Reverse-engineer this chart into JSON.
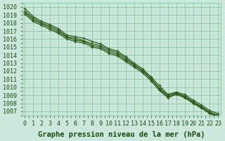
{
  "title": "Graphe pression niveau de la mer (hPa)",
  "xlabel_hours": [
    0,
    1,
    2,
    3,
    4,
    5,
    6,
    7,
    8,
    9,
    10,
    11,
    12,
    13,
    14,
    15,
    16,
    17,
    18,
    19,
    20,
    21,
    22,
    23
  ],
  "series": [
    [
      1019.8,
      1018.8,
      1018.2,
      1017.8,
      1017.3,
      1016.5,
      1016.3,
      1016.1,
      1015.7,
      1015.4,
      1014.8,
      1014.5,
      1013.8,
      1013.0,
      1012.3,
      1011.3,
      1010.2,
      1009.1,
      1009.4,
      1009.1,
      1008.4,
      1007.8,
      1007.1,
      1006.7
    ],
    [
      1019.5,
      1018.6,
      1018.0,
      1017.6,
      1017.1,
      1016.3,
      1016.1,
      1015.8,
      1015.4,
      1015.2,
      1014.6,
      1014.3,
      1013.6,
      1012.8,
      1012.1,
      1011.1,
      1009.9,
      1009.0,
      1009.3,
      1008.9,
      1008.2,
      1007.6,
      1006.9,
      1006.5
    ],
    [
      1019.3,
      1018.4,
      1017.9,
      1017.4,
      1016.9,
      1016.2,
      1015.9,
      1015.7,
      1015.2,
      1015.0,
      1014.4,
      1014.1,
      1013.4,
      1012.7,
      1012.0,
      1011.0,
      1009.8,
      1008.8,
      1009.2,
      1008.8,
      1008.1,
      1007.5,
      1006.8,
      1006.4
    ],
    [
      1019.1,
      1018.2,
      1017.7,
      1017.2,
      1016.7,
      1016.0,
      1015.7,
      1015.5,
      1015.0,
      1014.8,
      1014.2,
      1013.9,
      1013.2,
      1012.5,
      1011.8,
      1010.8,
      1009.6,
      1008.7,
      1009.1,
      1008.7,
      1008.0,
      1007.4,
      1006.7,
      1006.3
    ]
  ],
  "line_color": "#2d5a1b",
  "marker_color": "#2d5a1b",
  "bg_color": "#cce8dc",
  "grid_major_color": "#88c4a0",
  "grid_minor_color": "#aad8bc",
  "axis_label_color": "#1a4a10",
  "ylim": [
    1006.5,
    1020.5
  ],
  "yticks": [
    1007,
    1008,
    1009,
    1010,
    1011,
    1012,
    1013,
    1014,
    1015,
    1016,
    1017,
    1018,
    1019,
    1020
  ],
  "title_fontsize": 7.5,
  "tick_fontsize": 6,
  "marker": "+",
  "linewidth": 0.9,
  "markersize": 3.5
}
